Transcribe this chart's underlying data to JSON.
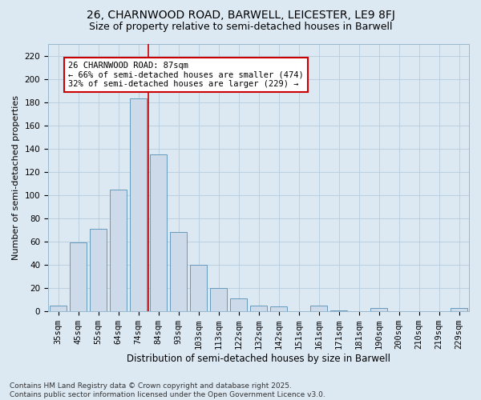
{
  "title": "26, CHARNWOOD ROAD, BARWELL, LEICESTER, LE9 8FJ",
  "subtitle": "Size of property relative to semi-detached houses in Barwell",
  "xlabel": "Distribution of semi-detached houses by size in Barwell",
  "ylabel": "Number of semi-detached properties",
  "categories": [
    "35sqm",
    "45sqm",
    "55sqm",
    "64sqm",
    "74sqm",
    "84sqm",
    "93sqm",
    "103sqm",
    "113sqm",
    "122sqm",
    "132sqm",
    "142sqm",
    "151sqm",
    "161sqm",
    "171sqm",
    "181sqm",
    "190sqm",
    "200sqm",
    "210sqm",
    "219sqm",
    "229sqm"
  ],
  "values": [
    5,
    59,
    71,
    105,
    183,
    135,
    68,
    40,
    20,
    11,
    5,
    4,
    0,
    5,
    1,
    0,
    3,
    0,
    0,
    0,
    3
  ],
  "bar_color": "#ccdaea",
  "bar_edge_color": "#6699bb",
  "grid_color": "#b8ccdd",
  "background_color": "#dce8f2",
  "vline_color": "#cc0000",
  "vline_index": 4.5,
  "annotation_text": "26 CHARNWOOD ROAD: 87sqm\n← 66% of semi-detached houses are smaller (474)\n32% of semi-detached houses are larger (229) →",
  "annotation_box_facecolor": "#ffffff",
  "annotation_box_edgecolor": "#cc0000",
  "ylim": [
    0,
    230
  ],
  "yticks": [
    0,
    20,
    40,
    60,
    80,
    100,
    120,
    140,
    160,
    180,
    200,
    220
  ],
  "footnote": "Contains HM Land Registry data © Crown copyright and database right 2025.\nContains public sector information licensed under the Open Government Licence v3.0.",
  "title_fontsize": 10,
  "subtitle_fontsize": 9,
  "xlabel_fontsize": 8.5,
  "ylabel_fontsize": 8,
  "tick_fontsize": 7.5,
  "annot_fontsize": 7.5,
  "footnote_fontsize": 6.5
}
